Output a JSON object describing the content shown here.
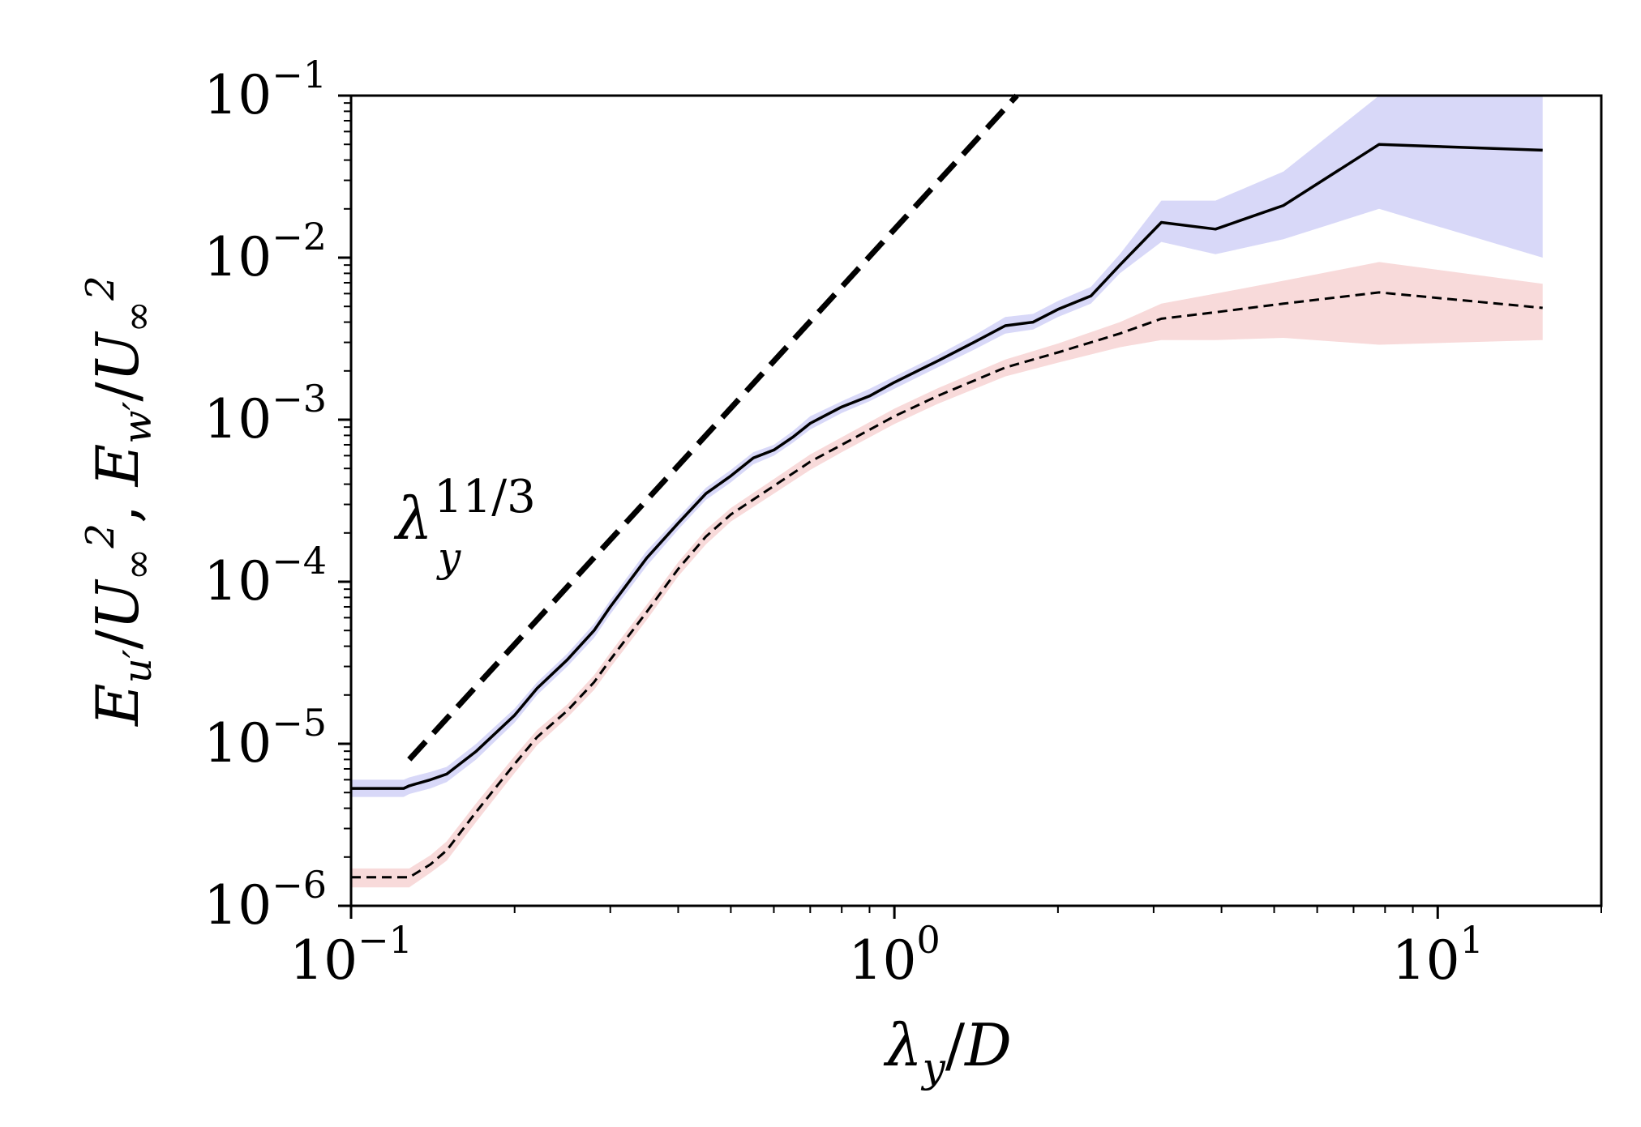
{
  "chart_data": {
    "type": "line",
    "xscale": "log",
    "yscale": "log",
    "xlim": [
      0.1,
      20
    ],
    "ylim": [
      1e-06,
      0.1
    ],
    "xlabel": "λy/D",
    "ylabel": "Eu'/U∞², Ew'/U∞²",
    "x_ticks": [
      {
        "value": 0.1,
        "base": "10",
        "exp": "−1"
      },
      {
        "value": 1,
        "base": "10",
        "exp": "0"
      },
      {
        "value": 10,
        "base": "10",
        "exp": "1"
      }
    ],
    "y_ticks": [
      {
        "value": 1e-06,
        "base": "10",
        "exp": "−6"
      },
      {
        "value": 1e-05,
        "base": "10",
        "exp": "−5"
      },
      {
        "value": 0.0001,
        "base": "10",
        "exp": "−4"
      },
      {
        "value": 0.001,
        "base": "10",
        "exp": "−3"
      },
      {
        "value": 0.01,
        "base": "10",
        "exp": "−2"
      },
      {
        "value": 0.1,
        "base": "10",
        "exp": "−1"
      }
    ],
    "annotation": {
      "base": "λ",
      "sub": "y",
      "sup": "11/3"
    },
    "series": [
      {
        "name": "Ew'",
        "style": "solid",
        "color": "#000000",
        "band_color": "#d8d8f8",
        "x": [
          0.1,
          0.125,
          0.128,
          0.14,
          0.15,
          0.17,
          0.2,
          0.22,
          0.25,
          0.28,
          0.3,
          0.35,
          0.4,
          0.45,
          0.5,
          0.55,
          0.6,
          0.65,
          0.7,
          0.8,
          0.9,
          1.0,
          1.2,
          1.4,
          1.6,
          1.8,
          2.0,
          2.3,
          2.6,
          3.1,
          3.9,
          5.2,
          7.8,
          15.6
        ],
        "y": [
          5.3e-06,
          5.3e-06,
          5.5e-06,
          6e-06,
          6.5e-06,
          9e-06,
          1.5e-05,
          2.2e-05,
          3.3e-05,
          5e-05,
          7e-05,
          0.00014,
          0.00023,
          0.00035,
          0.00045,
          0.00058,
          0.00065,
          0.00078,
          0.00095,
          0.0012,
          0.0014,
          0.0017,
          0.0023,
          0.003,
          0.0038,
          0.004,
          0.0048,
          0.0058,
          0.009,
          0.0165,
          0.015,
          0.021,
          0.05,
          0.046
        ],
        "band_low": [
          4.7e-06,
          4.7e-06,
          4.9e-06,
          5.3e-06,
          5.8e-06,
          8e-06,
          1.35e-05,
          2e-05,
          3e-05,
          4.5e-05,
          6.3e-05,
          0.000125,
          0.00021,
          0.00032,
          0.00041,
          0.00053,
          0.0006,
          0.00072,
          0.00087,
          0.0011,
          0.0013,
          0.00155,
          0.0021,
          0.0027,
          0.0034,
          0.0036,
          0.0043,
          0.0052,
          0.008,
          0.0125,
          0.0105,
          0.013,
          0.02,
          0.01
        ],
        "band_high": [
          6e-06,
          6e-06,
          6.2e-06,
          6.7e-06,
          7.2e-06,
          1e-05,
          1.65e-05,
          2.4e-05,
          3.6e-05,
          5.5e-05,
          7.7e-05,
          0.000155,
          0.00025,
          0.00038,
          0.00049,
          0.00063,
          0.0007,
          0.00085,
          0.00105,
          0.0013,
          0.00155,
          0.00185,
          0.0025,
          0.0033,
          0.0043,
          0.0045,
          0.0054,
          0.0066,
          0.0105,
          0.0225,
          0.0225,
          0.034,
          0.1,
          0.1
        ]
      },
      {
        "name": "Eu'",
        "style": "dashed",
        "color": "#000000",
        "band_color": "#f8dada",
        "x": [
          0.1,
          0.128,
          0.14,
          0.15,
          0.17,
          0.2,
          0.22,
          0.25,
          0.28,
          0.3,
          0.35,
          0.4,
          0.45,
          0.5,
          0.6,
          0.7,
          0.8,
          1.0,
          1.2,
          1.6,
          2.0,
          2.6,
          3.1,
          3.9,
          5.2,
          7.8,
          15.6
        ],
        "y": [
          1.5e-06,
          1.5e-06,
          1.8e-06,
          2.2e-06,
          3.8e-06,
          7.5e-06,
          1.1e-05,
          1.6e-05,
          2.4e-05,
          3.3e-05,
          6.5e-05,
          0.00012,
          0.00019,
          0.00026,
          0.00039,
          0.00055,
          0.0007,
          0.00105,
          0.0014,
          0.0021,
          0.0026,
          0.0034,
          0.0042,
          0.0046,
          0.0052,
          0.0061,
          0.0049
        ],
        "band_low": [
          1.3e-06,
          1.3e-06,
          1.6e-06,
          1.9e-06,
          3.3e-06,
          6.6e-06,
          9.8e-06,
          1.45e-05,
          2.15e-05,
          2.95e-05,
          5.8e-05,
          0.000108,
          0.00017,
          0.000235,
          0.00035,
          0.00049,
          0.00063,
          0.00094,
          0.00125,
          0.00185,
          0.00225,
          0.0028,
          0.0031,
          0.0031,
          0.0032,
          0.0029,
          0.0031
        ],
        "band_high": [
          1.7e-06,
          1.7e-06,
          2.05e-06,
          2.5e-06,
          4.3e-06,
          8.4e-06,
          1.22e-05,
          1.75e-05,
          2.65e-05,
          3.65e-05,
          7.2e-05,
          0.000132,
          0.00021,
          0.000285,
          0.00043,
          0.00061,
          0.00078,
          0.00117,
          0.00156,
          0.00235,
          0.00295,
          0.004,
          0.0052,
          0.006,
          0.0072,
          0.0094,
          0.0069
        ]
      },
      {
        "name": "λy^(11/3) reference",
        "style": "dashed-thick",
        "color": "#000000",
        "x": [
          0.128,
          1.68
        ],
        "y": [
          8e-06,
          0.1
        ]
      }
    ]
  }
}
